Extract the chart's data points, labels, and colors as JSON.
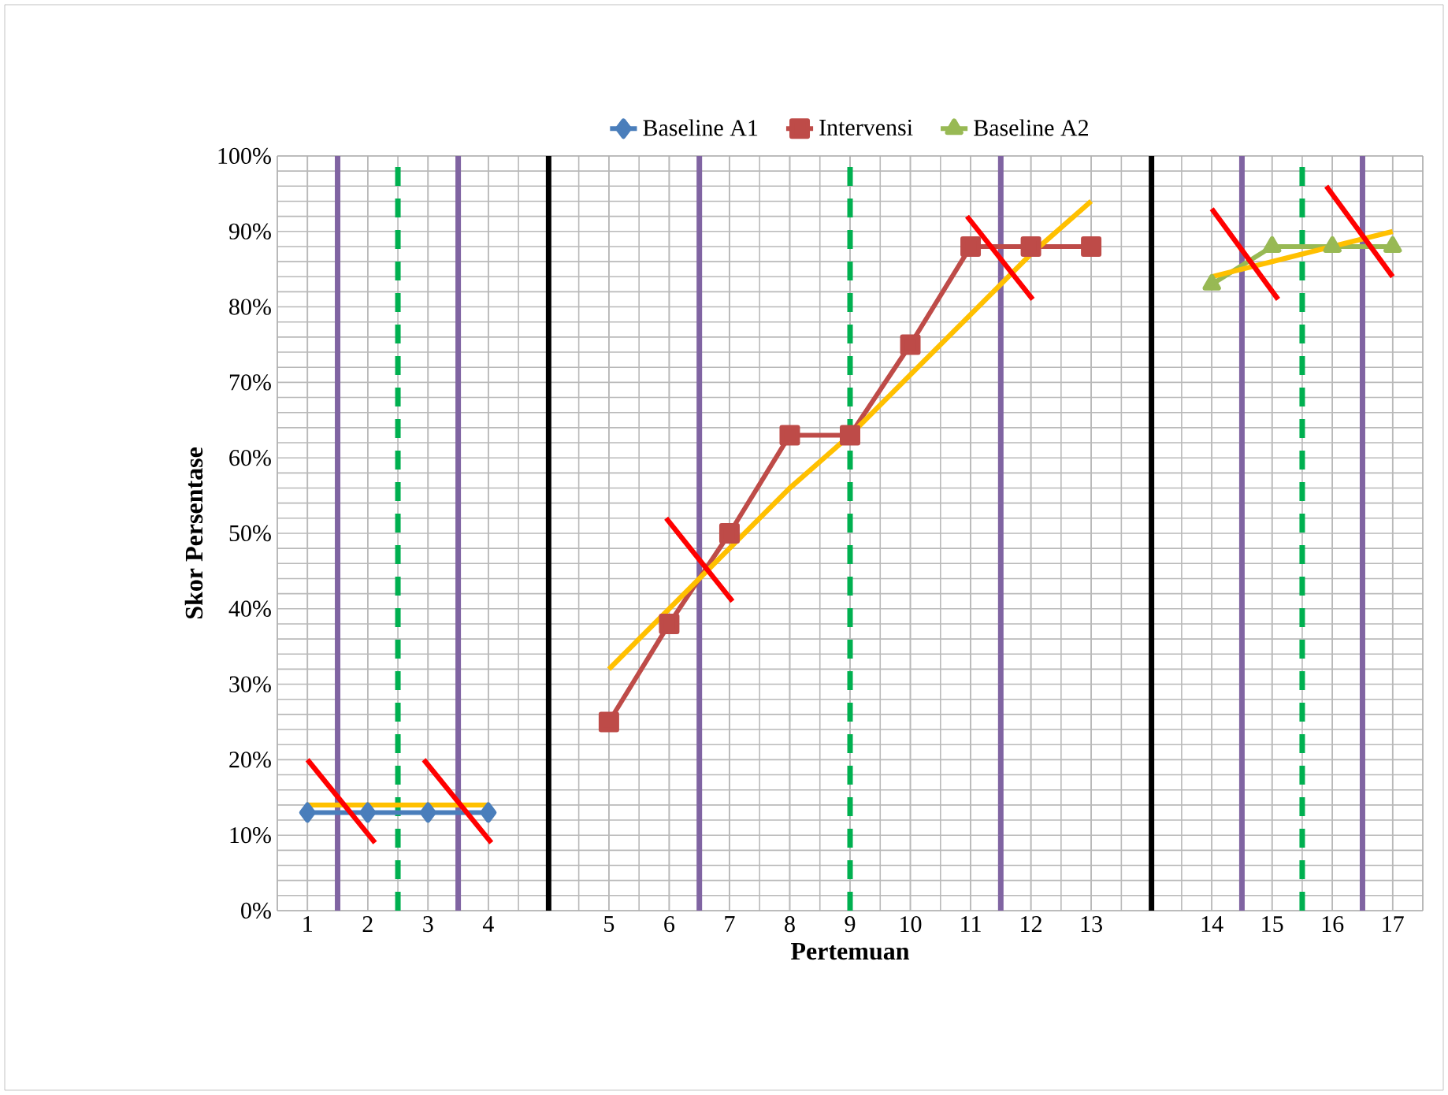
{
  "chart_data": {
    "type": "line",
    "xlabel": "Pertemuan",
    "ylabel": "Skor Persentase",
    "categories": [
      "1",
      "2",
      "3",
      "4",
      null,
      "5",
      "6",
      "7",
      "8",
      "9",
      "10",
      "11",
      "12",
      "13",
      null,
      "14",
      "15",
      "16",
      "17"
    ],
    "ylim": [
      0,
      100
    ],
    "yticks": [
      {
        "value": 0,
        "label": "0%"
      },
      {
        "value": 10,
        "label": "10%"
      },
      {
        "value": 20,
        "label": "20%"
      },
      {
        "value": 30,
        "label": "30%"
      },
      {
        "value": 40,
        "label": "40%"
      },
      {
        "value": 50,
        "label": "50%"
      },
      {
        "value": 60,
        "label": "60%"
      },
      {
        "value": 70,
        "label": "70%"
      },
      {
        "value": 80,
        "label": "80%"
      },
      {
        "value": 90,
        "label": "90%"
      },
      {
        "value": 100,
        "label": "100%"
      }
    ],
    "grid": true,
    "legend": "top",
    "series": [
      {
        "name": "Baseline A1",
        "color": "#4a7ebb",
        "marker": "diamond",
        "values": [
          13,
          13,
          13,
          13,
          null,
          null,
          null,
          null,
          null,
          null,
          null,
          null,
          null,
          null,
          null,
          null,
          null,
          null,
          null
        ]
      },
      {
        "name": "Intervensi",
        "color": "#be4b48",
        "marker": "square",
        "values": [
          null,
          null,
          null,
          null,
          null,
          25,
          38,
          50,
          63,
          63,
          75,
          88,
          88,
          88,
          null,
          null,
          null,
          null,
          null
        ]
      },
      {
        "name": "Baseline A2",
        "color": "#98b954",
        "marker": "triangle",
        "values": [
          null,
          null,
          null,
          null,
          null,
          null,
          null,
          null,
          null,
          null,
          null,
          null,
          null,
          null,
          null,
          83,
          88,
          88,
          88
        ]
      },
      {
        "color": "#ffc000",
        "marker": "none",
        "values": [
          14,
          14,
          14,
          14,
          null,
          null,
          null,
          null,
          null,
          null,
          null,
          null,
          null,
          null,
          null,
          null,
          null,
          null,
          null
        ]
      },
      {
        "color": "#ffc000",
        "marker": "none",
        "values": [
          null,
          null,
          null,
          null,
          null,
          32,
          40,
          48,
          56,
          63,
          71,
          79,
          87,
          94,
          null,
          null,
          null,
          null,
          null
        ]
      },
      {
        "color": "#ffc000",
        "marker": "none",
        "values": [
          null,
          null,
          null,
          null,
          null,
          null,
          null,
          null,
          null,
          null,
          null,
          null,
          null,
          null,
          null,
          84,
          86,
          88,
          90
        ]
      }
    ]
  }
}
